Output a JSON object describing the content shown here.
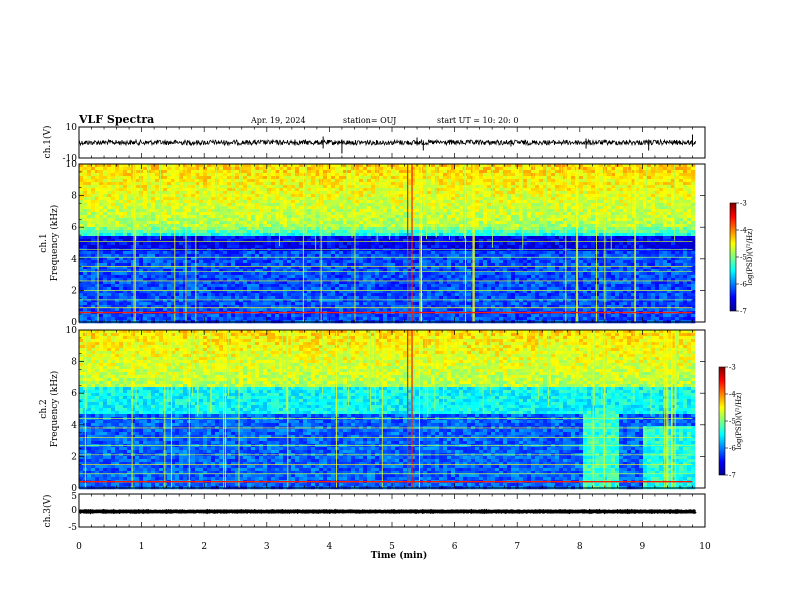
{
  "header": {
    "title": "VLF Spectra",
    "date": "Apr. 19, 2024",
    "station": "station= OUJ",
    "start": "start  UT =   10: 20: 0"
  },
  "chart_data": [
    {
      "type": "line",
      "panel": "ch1-waveform",
      "ylabel": "ch.1(V)",
      "ylim": [
        -10,
        10
      ],
      "yticks": [
        "10",
        "-10"
      ],
      "xlim": [
        0,
        10
      ],
      "trace_level": 0,
      "color": "#000000"
    },
    {
      "type": "heatmap",
      "panel": "ch1-spectrogram",
      "ylabel_line1": "ch.1",
      "ylabel_line2": "Frequency  (kHz)",
      "ylim": [
        0,
        10
      ],
      "yticks": [
        "0",
        "2",
        "4",
        "6",
        "8",
        "10"
      ],
      "xlim": [
        0,
        10
      ],
      "data_end_min": 9.8,
      "colorbar": {
        "label": "log(PSD)(V²/Hz)",
        "range": [
          -7,
          -3
        ],
        "ticks": [
          "-3",
          "-4",
          "-5",
          "-6",
          "-7"
        ]
      }
    },
    {
      "type": "heatmap",
      "panel": "ch2-spectrogram",
      "ylabel_line1": "ch.2",
      "ylabel_line2": "Frequency  (kHz)",
      "ylim": [
        0,
        10
      ],
      "yticks": [
        "0",
        "2",
        "4",
        "6",
        "8",
        "10"
      ],
      "xlim": [
        0,
        10
      ],
      "data_end_min": 9.8,
      "colorbar": {
        "label": "log(PSD)(V²/Hz)",
        "range": [
          -7,
          -3
        ],
        "ticks": [
          "-3",
          "-4",
          "-5",
          "-6",
          "-7"
        ]
      }
    },
    {
      "type": "line",
      "panel": "ch3-waveform",
      "ylabel": "ch.3(V)",
      "ylim": [
        -5,
        5
      ],
      "yticks": [
        "5",
        "0",
        "-5"
      ],
      "xlim": [
        0,
        10
      ],
      "trace_level": -0.3,
      "color": "#000000"
    }
  ],
  "x_axis": {
    "label": "Time  (min)",
    "ticks": [
      "0",
      "1",
      "2",
      "3",
      "4",
      "5",
      "6",
      "7",
      "8",
      "9",
      "10"
    ]
  },
  "colors": {
    "axis": "#000000",
    "colormap": "jet"
  }
}
